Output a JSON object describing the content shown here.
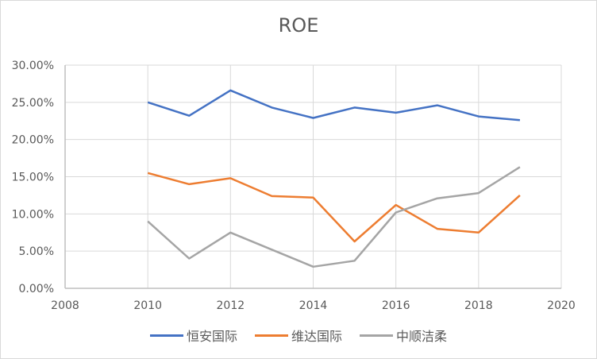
{
  "chart_data": {
    "type": "line",
    "title": "ROE",
    "xlabel": "",
    "ylabel": "",
    "x": [
      2010,
      2011,
      2012,
      2013,
      2014,
      2015,
      2016,
      2017,
      2018,
      2019
    ],
    "xlim": [
      2008,
      2020
    ],
    "ylim": [
      0,
      0.3
    ],
    "x_ticks": [
      "2008",
      "2010",
      "2012",
      "2014",
      "2016",
      "2018",
      "2020"
    ],
    "y_ticks": [
      "0.00%",
      "5.00%",
      "10.00%",
      "15.00%",
      "20.00%",
      "25.00%",
      "30.00%"
    ],
    "grid": true,
    "legend_position": "bottom",
    "series": [
      {
        "name": "恒安国际",
        "color": "#4472c4",
        "values": [
          0.25,
          0.232,
          0.266,
          0.243,
          0.229,
          0.243,
          0.236,
          0.246,
          0.231,
          0.226
        ]
      },
      {
        "name": "维达国际",
        "color": "#ed7d31",
        "values": [
          0.155,
          0.14,
          0.148,
          0.124,
          0.122,
          0.063,
          0.112,
          0.08,
          0.075,
          0.125
        ]
      },
      {
        "name": "中顺洁柔",
        "color": "#a5a5a5",
        "values": [
          0.09,
          0.04,
          0.075,
          0.052,
          0.029,
          0.037,
          0.102,
          0.121,
          0.128,
          0.163
        ]
      }
    ]
  }
}
